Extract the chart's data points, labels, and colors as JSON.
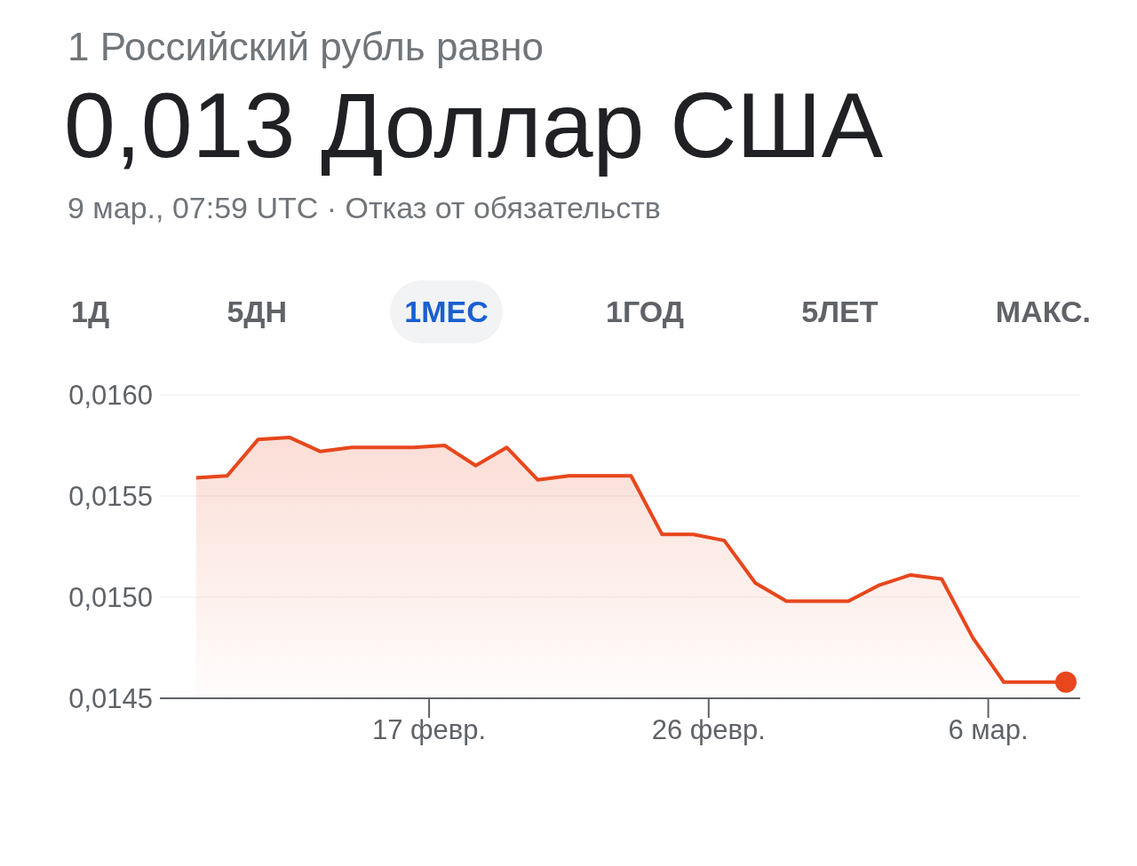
{
  "chart_data": {
    "type": "area",
    "title": "1 Российский рубль равно",
    "subtitle": "0,013 Доллар США",
    "annotations": [
      "9 мар., 07:59 UTC · Отказ от обязательств",
      "1Д",
      "5ДН",
      "1МЕС",
      "1ГОД",
      "5ЛЕТ",
      "МАКС."
    ],
    "x": [
      "--02-09T12:00",
      "--02-10T12:00",
      "--02-11T12:00",
      "--02-12T12:00",
      "--02-13T12:00",
      "--02-14T12:00",
      "--02-15T12:00",
      "--02-16T12:00",
      "--02-17T12:00",
      "--02-18T12:00",
      "--02-19T12:00",
      "--02-20T12:00",
      "--02-21T12:00",
      "--02-22T12:00",
      "--02-23T12:00",
      "--02-24T12:00",
      "--02-25T12:00",
      "--02-26T12:00",
      "--02-27T12:00",
      "--02-28T12:00",
      "--02-29T12:00",
      "--03-01T12:00",
      "--03-02T12:00",
      "--03-03T12:00",
      "--03-04T12:00",
      "--03-05T12:00",
      "--03-06T12:00",
      "--03-07T12:00",
      "--03-08T12:00"
    ],
    "series": [
      {
        "color": "#e8461c",
        "values": [
          0.01559,
          0.0156,
          0.01578,
          0.01579,
          0.01572,
          0.01574,
          0.01574,
          0.01574,
          0.01575,
          0.01565,
          0.01574,
          0.01558,
          0.0156,
          0.0156,
          0.0156,
          0.01531,
          0.01531,
          0.01528,
          0.01507,
          0.01498,
          0.01498,
          0.01498,
          0.01506,
          0.01511,
          0.01509,
          0.0148,
          0.01458,
          0.01458,
          0.01458
        ]
      }
    ],
    "xlim": [
      "--02-08T08:00",
      "--03-08T23:00"
    ],
    "xticks": [
      {
        "value": "--02-17",
        "label": "17 февр."
      },
      {
        "value": "--02-26",
        "label": "26 февр."
      },
      {
        "value": "--03-06",
        "label": "6 мар."
      }
    ],
    "ylim": [
      0.0145,
      0.016
    ],
    "yticks": [
      {
        "value": 0.0145,
        "label": "0,0145"
      },
      {
        "value": 0.015,
        "label": "0,0150"
      },
      {
        "value": 0.0155,
        "label": "0,0155"
      },
      {
        "value": 0.016,
        "label": "0,0160"
      }
    ],
    "grid": "y",
    "legend": false
  }
}
